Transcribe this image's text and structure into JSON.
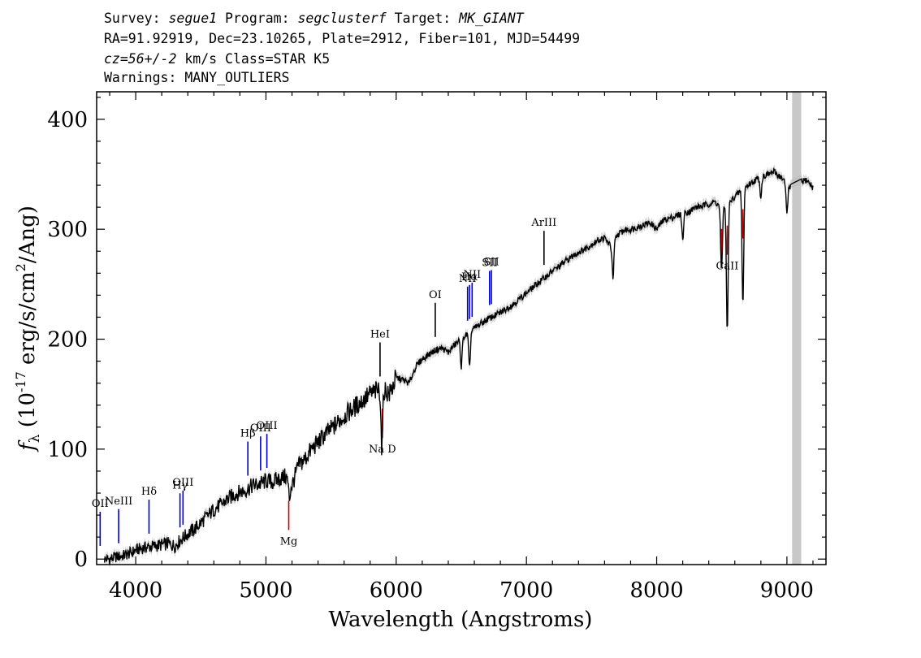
{
  "header": {
    "line1": {
      "survey_label": "Survey:",
      "survey": "segue1",
      "program_label": "Program:",
      "program": "segclusterf",
      "target_label": "Target:",
      "target": "MK_GIANT"
    },
    "line2": "RA=91.92919, Dec=23.10265, Plate=2912, Fiber=101, MJD=54499",
    "line3": {
      "cz": "cz=56+/-2",
      "rest": "km/s Class=STAR K5"
    },
    "line4": "Warnings: MANY_OUTLIERS"
  },
  "colors": {
    "spectrum": "#000000",
    "error_band": "#bdbdbd",
    "masked_region": "#c8c8c8",
    "emission_lines": "#0000cc",
    "absorption_lines": "#cc0000",
    "sky_lines": "#000000"
  },
  "chart_data": {
    "type": "line",
    "xlabel": "Wavelength (Angstroms)",
    "ylabel_prefix": "f",
    "ylabel_sub": "λ",
    "ylabel_mid": " (10",
    "ylabel_exp1": "-17",
    "ylabel_rest": " erg/s/cm",
    "ylabel_exp2": "2",
    "ylabel_end": "/Ang)",
    "xlim": [
      3700,
      9300
    ],
    "ylim": [
      -5,
      425
    ],
    "x_ticks": [
      "4000",
      "5000",
      "6000",
      "7000",
      "8000",
      "9000"
    ],
    "x_tick_values": [
      4000,
      5000,
      6000,
      7000,
      8000,
      9000
    ],
    "y_ticks": [
      "0",
      "100",
      "200",
      "300",
      "400"
    ],
    "y_tick_values": [
      0,
      100,
      200,
      300,
      400
    ],
    "masked_region": [
      9040,
      9110
    ],
    "series": [
      {
        "x": [
          3800,
          3850,
          3900,
          3950,
          4000,
          4050,
          4100,
          4150,
          4200,
          4250,
          4300,
          4350,
          4400,
          4450,
          4500,
          4550,
          4600,
          4650,
          4700,
          4750,
          4800,
          4850,
          4900,
          4950,
          5000,
          5050,
          5100,
          5150,
          5200,
          5250,
          5300,
          5350,
          5400,
          5450,
          5500,
          5550,
          5600,
          5650,
          5700,
          5750,
          5800,
          5850,
          5900,
          5950,
          6000,
          6050,
          6100,
          6150,
          6200,
          6250,
          6300,
          6350,
          6400,
          6450,
          6500,
          6550,
          6600,
          6650,
          6700,
          6750,
          6800,
          6850,
          6900,
          6950,
          7000,
          7050,
          7100,
          7150,
          7200,
          7250,
          7300,
          7350,
          7400,
          7450,
          7500,
          7550,
          7600,
          7650,
          7700,
          7750,
          7800,
          7850,
          7900,
          7950,
          8000,
          8050,
          8100,
          8150,
          8200,
          8250,
          8300,
          8350,
          8400,
          8450,
          8500,
          8550,
          8600,
          8650,
          8700,
          8750,
          8800,
          8850,
          8900,
          8950,
          9000,
          9050,
          9100,
          9150,
          9200
        ],
        "y": [
          0,
          2,
          3,
          5,
          8,
          10,
          11,
          12,
          13,
          14,
          12,
          18,
          23,
          27,
          33,
          39,
          45,
          49,
          54,
          58,
          61,
          63,
          67,
          68,
          71,
          70,
          73,
          75,
          67,
          85,
          91,
          100,
          106,
          113,
          118,
          124,
          130,
          135,
          140,
          145,
          150,
          153,
          155,
          150,
          165,
          163,
          160,
          175,
          182,
          186,
          190,
          192,
          188,
          195,
          200,
          205,
          210,
          214,
          218,
          221,
          224,
          228,
          232,
          237,
          242,
          247,
          252,
          257,
          262,
          266,
          271,
          275,
          279,
          282,
          286,
          290,
          292,
          284,
          295,
          299,
          300,
          302,
          304,
          306,
          300,
          308,
          310,
          312,
          315,
          316,
          320,
          321,
          323,
          325,
          318,
          322,
          330,
          335,
          340,
          344,
          347,
          350,
          352,
          348,
          340,
          338,
          342,
          345,
          338
        ]
      }
    ],
    "absorption_dips": [
      {
        "x": 5890,
        "y": 100
      },
      {
        "x": 5180,
        "y": 55
      },
      {
        "x": 6563,
        "y": 173
      },
      {
        "x": 6500,
        "y": 175
      },
      {
        "x": 8498,
        "y": 260
      },
      {
        "x": 8542,
        "y": 205
      },
      {
        "x": 8662,
        "y": 232
      },
      {
        "x": 7665,
        "y": 255
      },
      {
        "x": 8200,
        "y": 290
      },
      {
        "x": 8800,
        "y": 330
      },
      {
        "x": 9000,
        "y": 315
      }
    ],
    "emission_lines": [
      {
        "label": "OII",
        "x": 3727
      },
      {
        "label": "NeIII",
        "x": 3869
      },
      {
        "label": "Hδ",
        "x": 4102
      },
      {
        "label": "Hγ",
        "x": 4340
      },
      {
        "label": "OIII",
        "x": 4363
      },
      {
        "label": "Hβ",
        "x": 4861
      },
      {
        "label": "OIII",
        "x": 4959
      },
      {
        "label": "OIII",
        "x": 5007
      },
      {
        "label": "HeI",
        "x": 5876
      },
      {
        "label": "OI",
        "x": 6300
      },
      {
        "label": "NII",
        "x": 6548
      },
      {
        "label": "Hα",
        "x": 6563
      },
      {
        "label": "NII",
        "x": 6583
      },
      {
        "label": "SII",
        "x": 6717
      },
      {
        "label": "SII",
        "x": 6731
      },
      {
        "label": "ArIII",
        "x": 7135
      }
    ],
    "absorption_lines": [
      {
        "label": "Mg",
        "x": 5175
      },
      {
        "label": "Na D",
        "x": 5894
      },
      {
        "label": "CaII",
        "x": 8498
      },
      {
        "label": "CaII",
        "x": 8542
      },
      {
        "label": "CaII",
        "x": 8662
      }
    ]
  }
}
